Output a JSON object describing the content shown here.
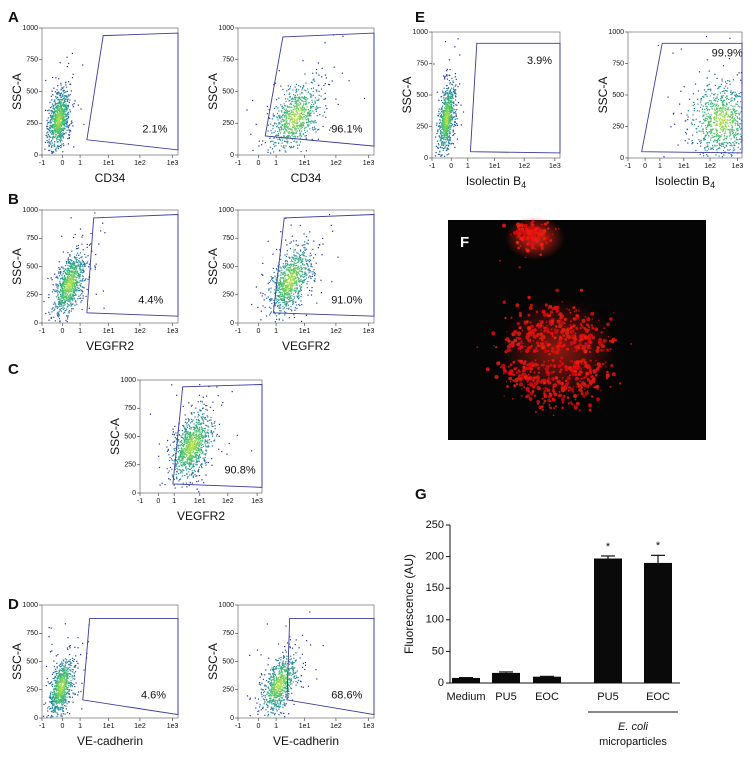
{
  "flow_axes": {
    "y_label": "SSC-A",
    "yticks": [
      "0",
      "250",
      "500",
      "750",
      "1000"
    ],
    "xticks": [
      "-1",
      "0",
      "1",
      "1e1",
      "1e2",
      "1e3"
    ]
  },
  "panels": [
    {
      "label": "A",
      "x_label": "CD34",
      "plots": [
        {
          "percent": "2.1%"
        },
        {
          "percent": "96.1%"
        }
      ]
    },
    {
      "label": "B",
      "x_label": "VEGFR2",
      "plots": [
        {
          "percent": "4.4%"
        },
        {
          "percent": "91.0%"
        }
      ]
    },
    {
      "label": "C",
      "x_label": "VEGFR2",
      "plots": [
        {
          "percent": "90.8%"
        }
      ]
    },
    {
      "label": "D",
      "x_label": "VE-cadherin",
      "plots": [
        {
          "percent": "4.6%"
        },
        {
          "percent": "68.6%"
        }
      ]
    },
    {
      "label": "E",
      "x_label": "Isolectin B",
      "x_label_sub": "4",
      "plots": [
        {
          "percent": "3.9%"
        },
        {
          "percent": "99.9%"
        }
      ]
    }
  ],
  "image_panel": {
    "label": "F"
  },
  "chart_data": {
    "label": "G",
    "type": "bar",
    "y_label": "Fluorescence (AU)",
    "categories": [
      "Medium",
      "PU5",
      "EOC",
      "PU5",
      "EOC"
    ],
    "values": [
      8,
      16,
      10,
      197,
      190
    ],
    "errors": [
      0.5,
      1.5,
      0.5,
      4,
      12
    ],
    "color": "#0a0a0a",
    "ylim": [
      0,
      250
    ],
    "yticks": [
      0,
      50,
      100,
      150,
      200,
      250
    ],
    "significance": [
      null,
      null,
      null,
      "*",
      "*"
    ],
    "group_label": {
      "italic": "E. coli",
      "text": "microparticles"
    }
  }
}
